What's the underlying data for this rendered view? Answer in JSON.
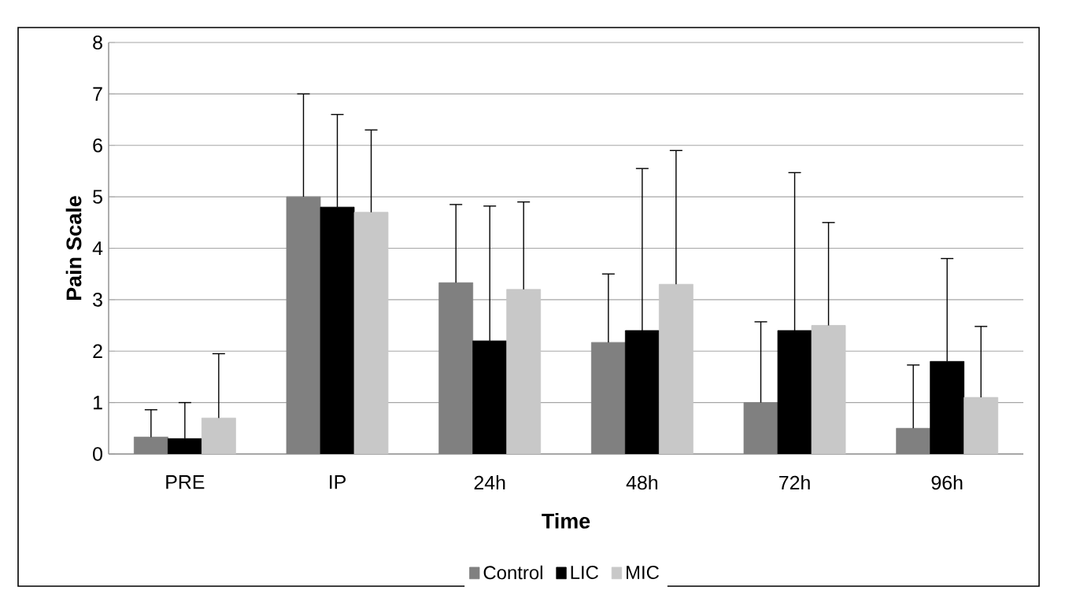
{
  "chart_data": {
    "type": "bar",
    "xlabel": "Time",
    "ylabel": "Pain Scale",
    "categories": [
      "PRE",
      "IP",
      "24h",
      "48h",
      "72h",
      "96h"
    ],
    "series": [
      {
        "name": "Control",
        "color": "#808080",
        "values": [
          0.33,
          5.0,
          3.33,
          2.17,
          1.0,
          0.5
        ],
        "errors": [
          [
            0.33,
            0.86
          ],
          [
            5.0,
            7.0
          ],
          [
            3.33,
            4.85
          ],
          [
            2.17,
            3.5
          ],
          [
            1.0,
            2.57
          ],
          [
            0.5,
            1.73
          ]
        ]
      },
      {
        "name": "LIC",
        "color": "#000000",
        "values": [
          0.3,
          4.8,
          2.2,
          2.4,
          2.4,
          1.8
        ],
        "errors": [
          [
            0.3,
            1.0
          ],
          [
            4.8,
            6.6
          ],
          [
            2.2,
            4.82
          ],
          [
            2.4,
            5.55
          ],
          [
            2.4,
            5.47
          ],
          [
            1.8,
            3.8
          ]
        ]
      },
      {
        "name": "MIC",
        "color": "#c8c8c8",
        "values": [
          0.7,
          4.7,
          3.2,
          3.3,
          2.5,
          1.1
        ],
        "errors": [
          [
            0.7,
            1.95
          ],
          [
            4.7,
            6.3
          ],
          [
            3.2,
            4.9
          ],
          [
            3.3,
            5.9
          ],
          [
            2.5,
            4.5
          ],
          [
            1.1,
            2.48
          ]
        ]
      }
    ],
    "ylim": [
      0,
      8
    ],
    "yticks": [
      0,
      1,
      2,
      3,
      4,
      5,
      6,
      7,
      8
    ],
    "grid": "y",
    "legend": "bottom"
  }
}
